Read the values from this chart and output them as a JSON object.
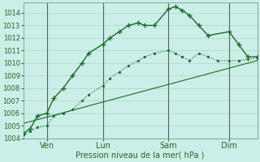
{
  "xlabel": "Pression niveau de la mer( hPa )",
  "ylim": [
    1004,
    1014.8
  ],
  "xlim": [
    0,
    100
  ],
  "yticks": [
    1004,
    1005,
    1006,
    1007,
    1008,
    1009,
    1010,
    1011,
    1012,
    1013,
    1014
  ],
  "xtick_positions": [
    10,
    34,
    62,
    88
  ],
  "xtick_labels": [
    "Ven",
    "Lun",
    "Sam",
    "Dim"
  ],
  "bg_color": "#cceee8",
  "grid_color": "#aaddcc",
  "line_color": "#1a6b2a",
  "line_color2": "#2d8a3e",
  "line1_x": [
    0,
    3,
    6,
    10,
    13,
    17,
    21,
    25,
    28,
    34,
    37,
    41,
    45,
    49,
    52,
    56,
    62,
    65,
    68,
    71,
    75,
    79,
    83,
    88,
    92,
    96,
    100
  ],
  "line1_y": [
    1004.3,
    1004.6,
    1004.9,
    1005.0,
    1005.8,
    1006.0,
    1006.3,
    1007.0,
    1007.5,
    1008.2,
    1008.8,
    1009.3,
    1009.8,
    1010.2,
    1010.5,
    1010.8,
    1011.0,
    1010.8,
    1010.5,
    1010.2,
    1010.8,
    1010.5,
    1010.2,
    1010.2,
    1010.2,
    1010.3,
    1010.4
  ],
  "line2_x": [
    0,
    3,
    6,
    10,
    13,
    17,
    21,
    25,
    28,
    34,
    37,
    41,
    45,
    49,
    52,
    56,
    62,
    65,
    68,
    71,
    75,
    79,
    88,
    92,
    96,
    100
  ],
  "line2_y": [
    1004.4,
    1004.8,
    1005.8,
    1006.0,
    1007.2,
    1008.0,
    1009.0,
    1010.0,
    1010.8,
    1011.5,
    1012.0,
    1012.5,
    1013.0,
    1013.2,
    1013.0,
    1013.0,
    1014.3,
    1014.5,
    1014.2,
    1013.8,
    1013.0,
    1012.2,
    1012.5,
    1011.5,
    1010.5,
    1010.5
  ],
  "line3_x": [
    0,
    100
  ],
  "line3_y": [
    1005.2,
    1010.2
  ],
  "vline_positions": [
    10,
    34,
    62,
    88
  ],
  "vline_color": "#556655"
}
